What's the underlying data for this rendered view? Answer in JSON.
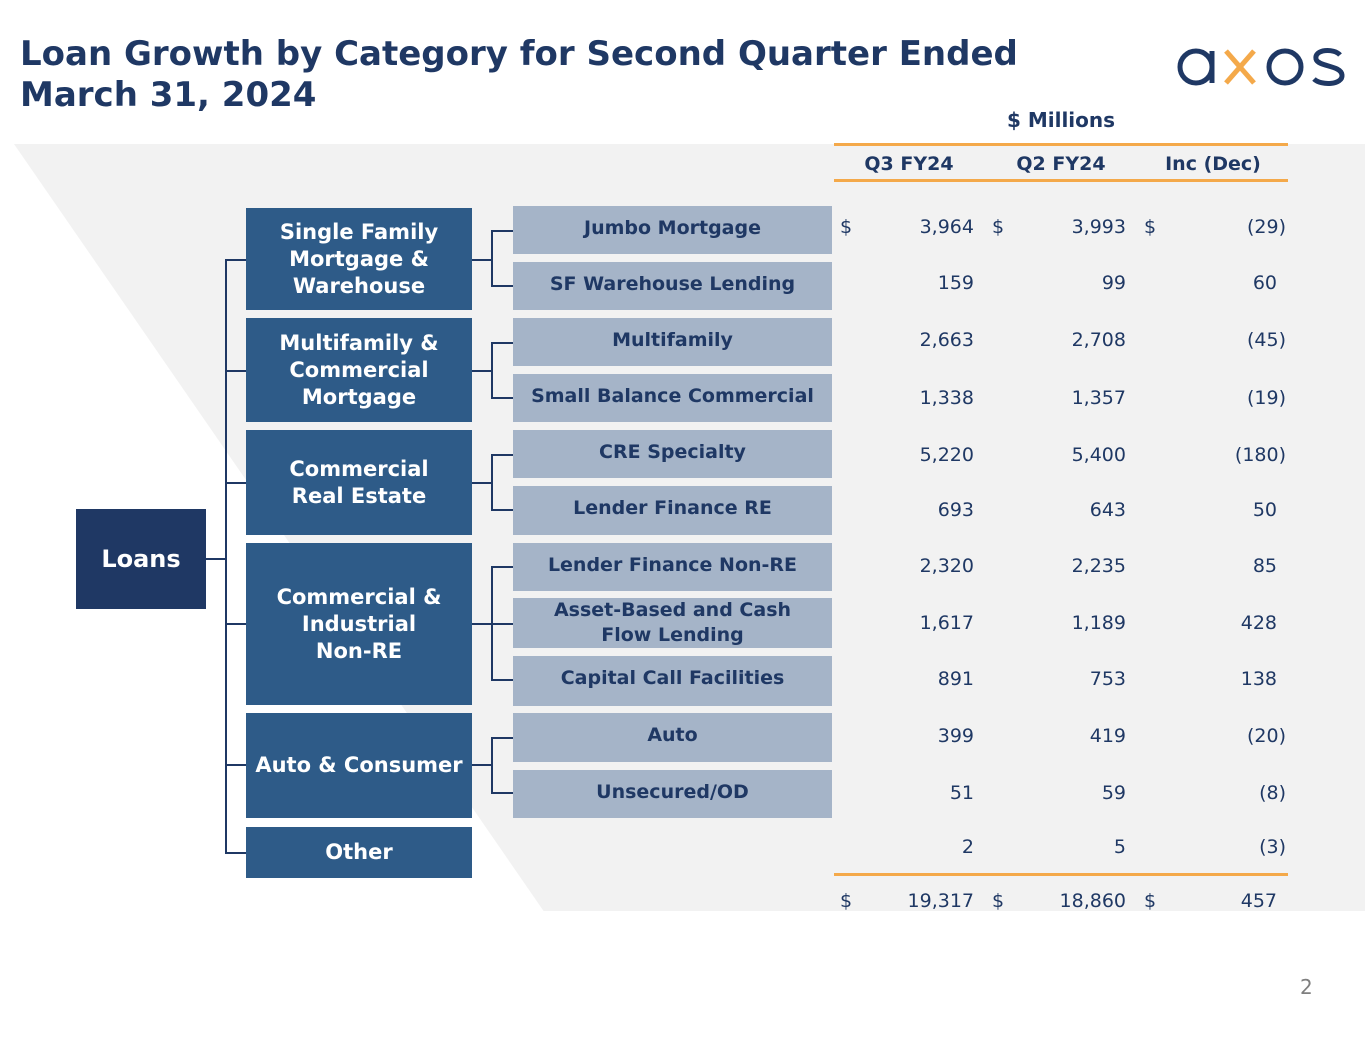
{
  "title": "Loan Growth by Category for Second Quarter Ended March 31, 2024",
  "logo_text": "axos",
  "units_label": "$ Millions",
  "columns": [
    "Q3 FY24",
    "Q2 FY24",
    "Inc (Dec)"
  ],
  "root": "Loans",
  "categories": [
    "Single Family\nMortgage &\nWarehouse",
    "Multifamily &\nCommercial\nMortgage",
    "Commercial\nReal Estate",
    "Commercial &\nIndustrial\nNon-RE",
    "Auto & Consumer",
    "Other"
  ],
  "rows": [
    {
      "label": "Jumbo Mortgage",
      "q3": "3,964",
      "q2": "3,993",
      "chg": "(29)"
    },
    {
      "label": "SF Warehouse Lending",
      "q3": "159",
      "q2": "99",
      "chg": "60"
    },
    {
      "label": "Multifamily",
      "q3": "2,663",
      "q2": "2,708",
      "chg": "(45)"
    },
    {
      "label": "Small Balance Commercial",
      "q3": "1,338",
      "q2": "1,357",
      "chg": "(19)"
    },
    {
      "label": "CRE Specialty",
      "q3": "5,220",
      "q2": "5,400",
      "chg": "(180)"
    },
    {
      "label": "Lender Finance RE",
      "q3": "693",
      "q2": "643",
      "chg": "50"
    },
    {
      "label": "Lender Finance Non-RE",
      "q3": "2,320",
      "q2": "2,235",
      "chg": "85"
    },
    {
      "label": "Asset-Based and Cash\nFlow Lending",
      "q3": "1,617",
      "q2": "1,189",
      "chg": "428"
    },
    {
      "label": "Capital Call Facilities",
      "q3": "891",
      "q2": "753",
      "chg": "138"
    },
    {
      "label": "Auto",
      "q3": "399",
      "q2": "419",
      "chg": "(20)"
    },
    {
      "label": "Unsecured/OD",
      "q3": "51",
      "q2": "59",
      "chg": "(8)"
    },
    {
      "label": "",
      "q3": "2",
      "q2": "5",
      "chg": "(3)"
    }
  ],
  "totals": {
    "q3": "19,317",
    "q2": "18,860",
    "chg": "457"
  },
  "currency_symbol": "$",
  "page_number": "2"
}
